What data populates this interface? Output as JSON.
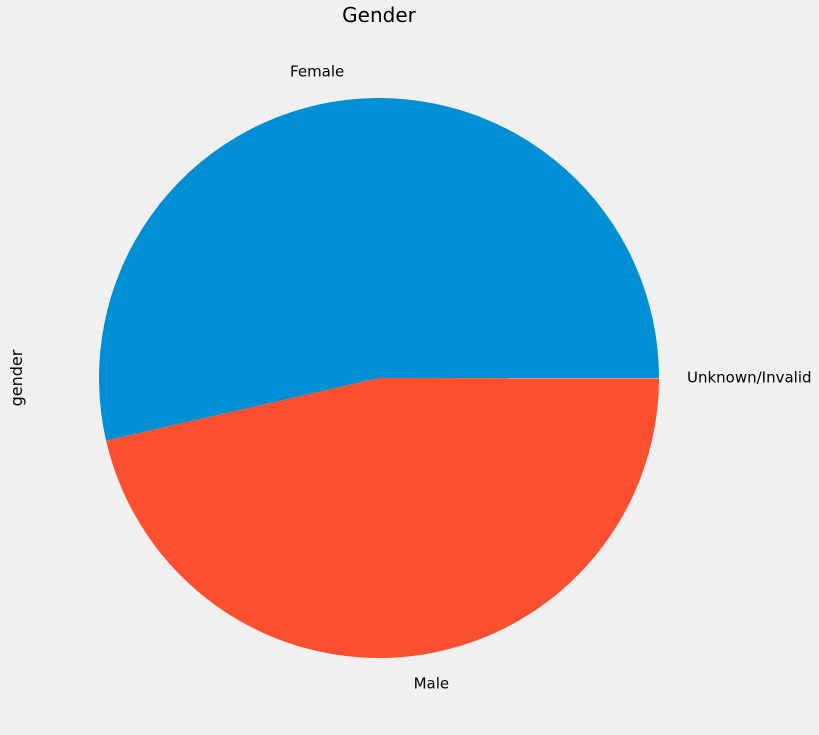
{
  "chart_data": {
    "type": "pie",
    "title": "Gender",
    "ylabel": "gender",
    "slices": [
      {
        "label": "Female",
        "value": 53.6,
        "color": "#008fd5"
      },
      {
        "label": "Male",
        "value": 46.4,
        "color": "#fc4f30"
      },
      {
        "label": "Unknown/Invalid",
        "value": 0.01,
        "color": "#e5ae38"
      }
    ],
    "start_angle_deg": 0,
    "direction": "counterclockwise"
  }
}
